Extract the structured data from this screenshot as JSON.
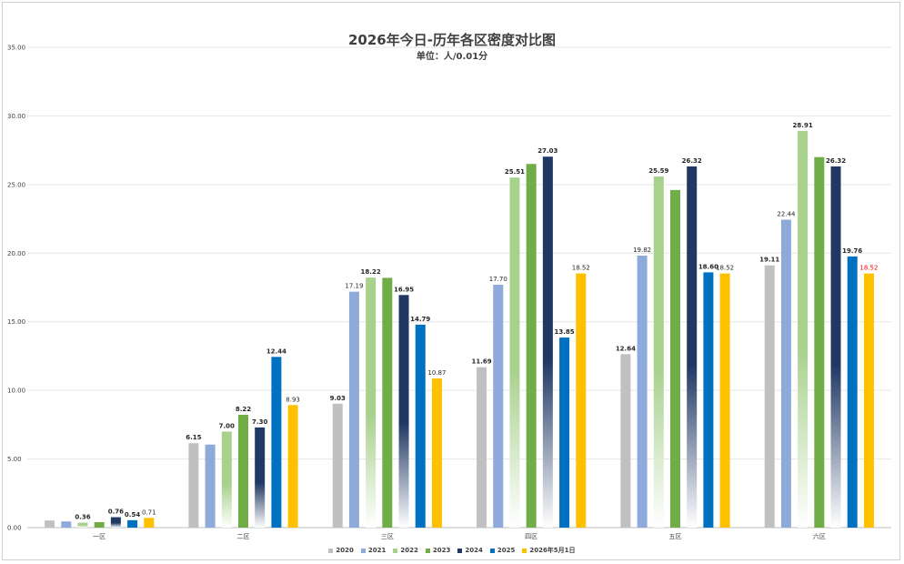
{
  "chart_data": {
    "type": "bar",
    "title": "2026年今日-历年各区密度对比图",
    "subtitle": "单位：人/0.01分",
    "categories": [
      "一区",
      "二区",
      "三区",
      "四区",
      "五区",
      "六区"
    ],
    "ylim": [
      0,
      35
    ],
    "yticks": [
      "0.00",
      "5.00",
      "10.00",
      "15.00",
      "20.00",
      "25.00",
      "30.00",
      "35.00"
    ],
    "grid": true,
    "legend_position": "bottom",
    "series": [
      {
        "name": "2020",
        "color": "#c0c0c0",
        "values": [
          0.52,
          6.15,
          9.03,
          11.69,
          12.64,
          19.11
        ],
        "labels": [
          "",
          "6.15",
          "9.03",
          "11.69",
          "12.64",
          "19.11"
        ]
      },
      {
        "name": "2021",
        "color": "#8eaadb",
        "values": [
          0.45,
          6.05,
          17.19,
          17.7,
          19.82,
          22.44
        ],
        "labels": [
          "",
          "",
          "17.19",
          "17.70",
          "19.82",
          "22.44"
        ]
      },
      {
        "name": "2022",
        "color": "#a9d18e",
        "values": [
          0.36,
          7.0,
          18.22,
          25.51,
          25.59,
          28.91
        ],
        "labels": [
          "0.36",
          "7.00",
          "18.22",
          "25.51",
          "25.59",
          "28.91"
        ]
      },
      {
        "name": "2023",
        "color": "#70ad47",
        "values": [
          0.4,
          8.22,
          18.2,
          26.5,
          24.6,
          27.0
        ],
        "labels": [
          "",
          "8.22",
          "",
          "",
          "",
          ""
        ]
      },
      {
        "name": "2024",
        "color": "#203864",
        "values": [
          0.76,
          7.3,
          16.95,
          27.03,
          26.32,
          26.32
        ],
        "labels": [
          "0.76",
          "7.30",
          "16.95",
          "27.03",
          "26.32",
          "26.32"
        ]
      },
      {
        "name": "2025",
        "color": "#0070c0",
        "values": [
          0.54,
          12.44,
          14.79,
          13.85,
          18.6,
          19.76
        ],
        "labels": [
          "0.54",
          "12.44",
          "14.79",
          "13.85",
          "18.60",
          "19.76"
        ]
      },
      {
        "name": "2026年5月1日",
        "color": "#ffc000",
        "values": [
          0.71,
          8.93,
          10.87,
          18.52,
          18.52,
          18.52
        ],
        "labels": [
          "0.71",
          "8.93",
          "10.87",
          "18.52",
          "18.52",
          "18.52"
        ],
        "last_label_color": "#ff0000"
      }
    ]
  }
}
